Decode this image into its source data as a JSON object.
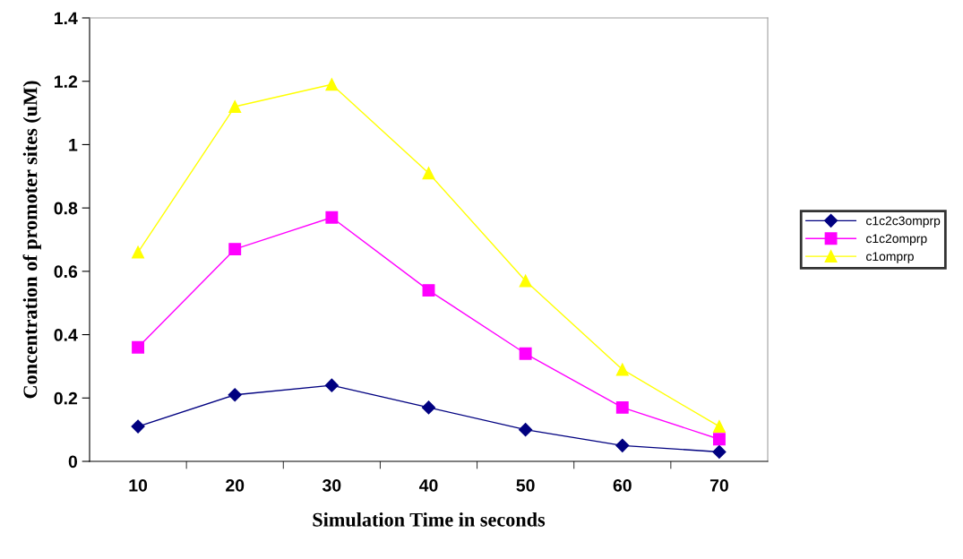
{
  "chart_data": {
    "type": "line",
    "xlabel": "Simulation Time in seconds",
    "ylabel": "Concentration of promoter sites (uM)",
    "categories": [
      "10",
      "20",
      "30",
      "40",
      "50",
      "60",
      "70"
    ],
    "series": [
      {
        "name": "c1c2c3omprp",
        "color": "#000080",
        "marker": "diamond",
        "values": [
          0.11,
          0.21,
          0.24,
          0.17,
          0.1,
          0.05,
          0.03
        ]
      },
      {
        "name": "c1c2omprp",
        "color": "#ff00ff",
        "marker": "square",
        "values": [
          0.36,
          0.67,
          0.77,
          0.54,
          0.34,
          0.17,
          0.07
        ]
      },
      {
        "name": "c1omprp",
        "color": "#ffff00",
        "marker": "triangle",
        "values": [
          0.66,
          1.12,
          1.19,
          0.91,
          0.57,
          0.29,
          0.11
        ]
      }
    ],
    "ylim": [
      0,
      1.4
    ],
    "yticks": [
      0,
      {
        "value": 0.2,
        "label": "0.2"
      },
      {
        "value": 0.4,
        "label": "0.4"
      },
      {
        "value": 0.6,
        "label": "0.6"
      },
      {
        "value": 0.8,
        "label": "0.8"
      },
      1,
      {
        "value": 1.2,
        "label": "1.2"
      },
      {
        "value": 1.4,
        "label": "1.4"
      }
    ],
    "grid": false,
    "legend": "right",
    "line_style": "solid"
  }
}
